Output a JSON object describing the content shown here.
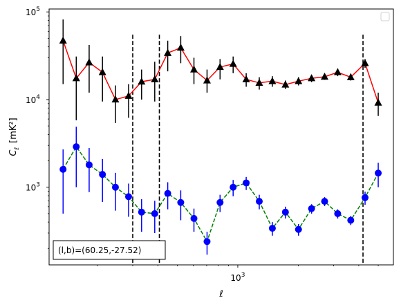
{
  "chart_data": {
    "type": "line",
    "xlabel": "ℓ",
    "ylabel_main": "C",
    "ylabel_sub": "ℓ",
    "ylabel_unit": "[mK²]",
    "xscale": "log",
    "yscale": "log",
    "xlim": [
      115,
      5950
    ],
    "ylim": [
      130,
      108000
    ],
    "x_tick_labels": [
      {
        "value": 1000,
        "base": "10",
        "exp": "3"
      }
    ],
    "y_tick_labels": [
      {
        "value": 1000,
        "base": "10",
        "exp": "3"
      },
      {
        "value": 10000,
        "base": "10",
        "exp": "4"
      },
      {
        "value": 100000,
        "base": "10",
        "exp": "5"
      }
    ],
    "vlines": [
      300,
      407,
      4200
    ],
    "vline_range": [
      [
        300,
        55000
      ],
      [
        407,
        55000
      ],
      [
        4200,
        55000
      ]
    ],
    "annotation": "(l,b)=(60.25,-27.52)",
    "legend_placement": "top-right",
    "legend_entries": [],
    "series": [
      {
        "color": "#ff0000",
        "marker": "triangle",
        "marker_color": "#000000",
        "errorbar_color": "#000000",
        "linestyle": "solid",
        "points": [
          {
            "x": 135,
            "y": 47000,
            "lo": 15000,
            "hi": 82000
          },
          {
            "x": 157,
            "y": 17500,
            "lo": 5800,
            "hi": 31000
          },
          {
            "x": 182,
            "y": 26500,
            "lo": 12000,
            "hi": 42000
          },
          {
            "x": 212,
            "y": 20500,
            "lo": 9500,
            "hi": 31000
          },
          {
            "x": 246,
            "y": 10000,
            "lo": 5400,
            "hi": 14500
          },
          {
            "x": 286,
            "y": 11000,
            "lo": 6200,
            "hi": 15000
          },
          {
            "x": 332,
            "y": 16000,
            "lo": 10000,
            "hi": 22000
          },
          {
            "x": 386,
            "y": 17000,
            "lo": 9500,
            "hi": 27000
          },
          {
            "x": 448,
            "y": 34000,
            "lo": 21000,
            "hi": 47000
          },
          {
            "x": 520,
            "y": 39000,
            "lo": 26000,
            "hi": 53000
          },
          {
            "x": 605,
            "y": 22000,
            "lo": 15000,
            "hi": 30000
          },
          {
            "x": 703,
            "y": 16500,
            "lo": 12000,
            "hi": 22000
          },
          {
            "x": 816,
            "y": 23500,
            "lo": 17000,
            "hi": 29000
          },
          {
            "x": 948,
            "y": 25500,
            "lo": 20000,
            "hi": 31000
          },
          {
            "x": 1101,
            "y": 17000,
            "lo": 14000,
            "hi": 20000
          },
          {
            "x": 1279,
            "y": 15500,
            "lo": 13000,
            "hi": 18000
          },
          {
            "x": 1486,
            "y": 16200,
            "lo": 14000,
            "hi": 18500
          },
          {
            "x": 1726,
            "y": 14800,
            "lo": 13200,
            "hi": 16500
          },
          {
            "x": 2005,
            "y": 16200,
            "lo": 14500,
            "hi": 18000
          },
          {
            "x": 2329,
            "y": 17500,
            "lo": 15800,
            "hi": 19000
          },
          {
            "x": 2705,
            "y": 18200,
            "lo": 16800,
            "hi": 19800
          },
          {
            "x": 3142,
            "y": 20500,
            "lo": 18500,
            "hi": 22500
          },
          {
            "x": 3650,
            "y": 18000,
            "lo": 16500,
            "hi": 19500
          },
          {
            "x": 4300,
            "y": 26000,
            "lo": 23000,
            "hi": 29000
          },
          {
            "x": 5000,
            "y": 9200,
            "lo": 6500,
            "hi": 12000
          }
        ]
      },
      {
        "color": "#008000",
        "marker": "circle",
        "marker_color": "#0000ff",
        "errorbar_color": "#0000ff",
        "linestyle": "dashed",
        "points": [
          {
            "x": 135,
            "y": 1600,
            "lo": 500,
            "hi": 2700
          },
          {
            "x": 157,
            "y": 2900,
            "lo": 1000,
            "hi": 4900
          },
          {
            "x": 182,
            "y": 1800,
            "lo": 880,
            "hi": 2800
          },
          {
            "x": 212,
            "y": 1400,
            "lo": 680,
            "hi": 2100
          },
          {
            "x": 246,
            "y": 1000,
            "lo": 540,
            "hi": 1460
          },
          {
            "x": 286,
            "y": 780,
            "lo": 460,
            "hi": 1100
          },
          {
            "x": 332,
            "y": 520,
            "lo": 310,
            "hi": 730
          },
          {
            "x": 386,
            "y": 500,
            "lo": 300,
            "hi": 700
          },
          {
            "x": 448,
            "y": 850,
            "lo": 560,
            "hi": 1140
          },
          {
            "x": 520,
            "y": 670,
            "lo": 420,
            "hi": 920
          },
          {
            "x": 605,
            "y": 440,
            "lo": 310,
            "hi": 570
          },
          {
            "x": 703,
            "y": 240,
            "lo": 170,
            "hi": 310
          },
          {
            "x": 816,
            "y": 670,
            "lo": 520,
            "hi": 820
          },
          {
            "x": 948,
            "y": 1000,
            "lo": 790,
            "hi": 1210
          },
          {
            "x": 1101,
            "y": 1120,
            "lo": 930,
            "hi": 1310
          },
          {
            "x": 1279,
            "y": 690,
            "lo": 560,
            "hi": 820
          },
          {
            "x": 1486,
            "y": 340,
            "lo": 280,
            "hi": 400
          },
          {
            "x": 1726,
            "y": 520,
            "lo": 440,
            "hi": 600
          },
          {
            "x": 2005,
            "y": 330,
            "lo": 280,
            "hi": 380
          },
          {
            "x": 2329,
            "y": 570,
            "lo": 500,
            "hi": 640
          },
          {
            "x": 2705,
            "y": 690,
            "lo": 610,
            "hi": 770
          },
          {
            "x": 3142,
            "y": 500,
            "lo": 440,
            "hi": 560
          },
          {
            "x": 3650,
            "y": 420,
            "lo": 370,
            "hi": 470
          },
          {
            "x": 4300,
            "y": 760,
            "lo": 630,
            "hi": 890
          },
          {
            "x": 5000,
            "y": 1450,
            "lo": 1000,
            "hi": 1900
          }
        ]
      }
    ]
  }
}
